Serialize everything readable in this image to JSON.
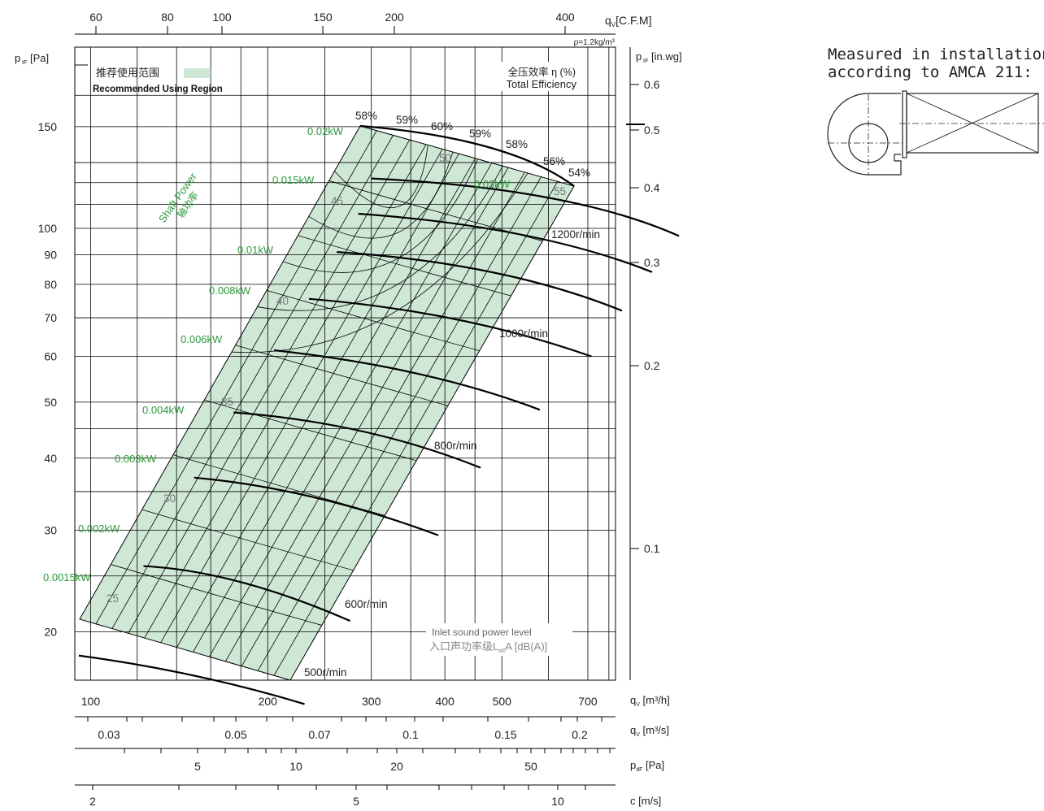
{
  "chart_data": {
    "type": "fan-performance-curve",
    "axes": {
      "x_cfm": {
        "label": "q",
        "sub": "V",
        "unit": "[C.F.M]",
        "ticks": [
          60,
          80,
          100,
          150,
          200,
          400
        ]
      },
      "x_m3h": {
        "label": "q",
        "sub": "V",
        "unit": "[m³/h]",
        "ticks": [
          100,
          200,
          300,
          400,
          500,
          700
        ],
        "range": [
          94,
          780
        ],
        "scale": "log"
      },
      "x_m3s": {
        "label": "q",
        "sub": "V",
        "unit": "[m³/s]",
        "ticks": [
          "0.03",
          "0.05",
          "0.07",
          "0.1",
          "0.15",
          "0.2"
        ]
      },
      "x_pdf": {
        "label": "p",
        "sub": "dF",
        "unit": "[Pa]",
        "ticks": [
          5,
          10,
          20,
          50
        ]
      },
      "x_c": {
        "label": "c",
        "unit": "[m/s]",
        "ticks": [
          2,
          5,
          10
        ]
      },
      "y_pa": {
        "label": "p",
        "sub": "tF",
        "unit": "[Pa]",
        "ticks": [
          20,
          30,
          40,
          50,
          60,
          70,
          80,
          90,
          100,
          150
        ],
        "range": [
          16.5,
          206
        ],
        "scale": "log"
      },
      "y_inwg": {
        "label": "p",
        "sub": "tF",
        "unit": "[in.wg]",
        "ticks": [
          "0.1",
          "0.2",
          "0.3",
          "0.4",
          "0.5",
          "0.6"
        ]
      }
    },
    "density_note": "ρ=1.2kg/m³",
    "legend": {
      "region_cn": "推荐使用范围",
      "region_en": "Recommended Using Region",
      "efficiency_cn": "全压效率 η (%)",
      "efficiency_en": "Total Efficiency",
      "sound_en": "Inlet sound power level",
      "sound_cn": "入口声功率级L",
      "sound_sub": "wt",
      "sound_unit": "A [dB(A)]",
      "shaft_en": "Shaft Power",
      "shaft_cn": "轴功率"
    },
    "speed_curves": [
      {
        "name": "500r/min",
        "points": [
          [
            95.5,
            18.2
          ],
          [
            150,
            16.8
          ],
          [
            231,
            15.0
          ]
        ]
      },
      {
        "name": "600r/min",
        "points": [
          [
            123,
            26.0
          ],
          [
            180,
            24.4
          ],
          [
            276,
            20.9
          ]
        ]
      },
      {
        "name": "800r/min",
        "points": [
          [
            150,
            37.0
          ],
          [
            240,
            34.2
          ],
          [
            390,
            29.4
          ]
        ]
      },
      {
        "name": "1000r/min",
        "points": [
          [
            175,
            48.0
          ],
          [
            290,
            44.5
          ],
          [
            460,
            38.5
          ]
        ]
      },
      {
        "name": "1200r/min",
        "points": [
          [
            205,
            61.5
          ],
          [
            360,
            56.0
          ],
          [
            580,
            48.5
          ]
        ]
      },
      {
        "name": "",
        "points": [
          [
            235,
            75.5
          ],
          [
            420,
            69.5
          ],
          [
            710,
            60.0
          ]
        ]
      },
      {
        "name": "",
        "points": [
          [
            262,
            91.0
          ],
          [
            480,
            84.0
          ],
          [
            800,
            72.0
          ]
        ]
      },
      {
        "name": "",
        "points": [
          [
            285,
            106.0
          ],
          [
            540,
            97.5
          ],
          [
            900,
            84.0
          ]
        ]
      },
      {
        "name": "",
        "points": [
          [
            300,
            122.0
          ],
          [
            600,
            113.0
          ],
          [
            1000,
            97.0
          ]
        ]
      }
    ],
    "speed_labels": [
      "500r/min",
      "600r/min",
      "800r/min",
      "1000r/min",
      "1200r/min"
    ],
    "efficiency_labels": [
      "58%",
      "59%",
      "60%",
      "59%",
      "58%",
      "56%",
      "54%"
    ],
    "shaft_power_labels": [
      "0.0015kW",
      "0.002kW",
      "0.003kW",
      "0.004kW",
      "0.006kW",
      "0.008kW",
      "0.01kW",
      "0.015kW",
      "0.02kW",
      "0.03kW"
    ],
    "sound_labels": [
      "25",
      "30",
      "35",
      "40",
      "45",
      "50",
      "55"
    ],
    "colors": {
      "region_fill": "#cfe8d6",
      "green_text": "#2e9a3c",
      "grid": "#000000",
      "gray_text": "#777777"
    }
  },
  "amca_note": {
    "line1": "Measured in installation B",
    "line2": "according to AMCA 211:"
  }
}
